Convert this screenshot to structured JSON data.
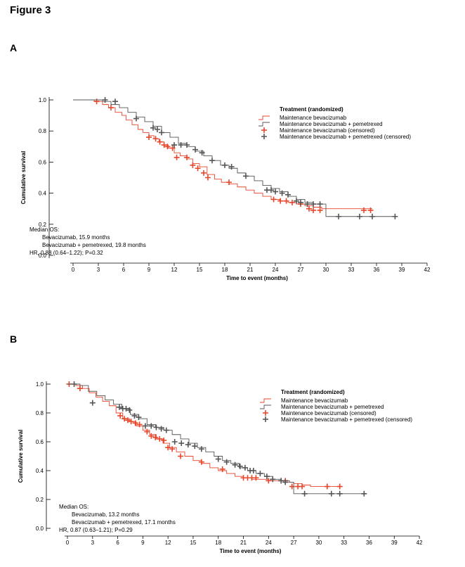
{
  "figure_title": "Figure 3",
  "colors": {
    "bev": "#e8452a",
    "pem": "#555555",
    "axis": "#000000"
  },
  "chart_data": [
    {
      "panel": "A",
      "type": "line",
      "xlabel": "Time to event (months)",
      "ylabel": "Cumulative survival",
      "xticks": [
        0,
        3,
        6,
        9,
        12,
        15,
        18,
        21,
        24,
        27,
        30,
        33,
        36,
        39,
        42
      ],
      "yticks": [
        0.0,
        0.2,
        0.4,
        0.6,
        0.8,
        1.0
      ],
      "ytick_labels": [
        "0.0",
        "0.2",
        "0.4",
        "0.6",
        "0.8",
        "1.0"
      ],
      "xlim": [
        0,
        42
      ],
      "ylim": [
        0,
        1
      ],
      "legend": {
        "title": "Treatment (randomized)",
        "placement": "top-right",
        "entries": [
          "Maintenance bevacizumab",
          "Maintenance bevacizumab + pemetrexed",
          "Maintenance bevacizumab (censored)",
          "Maintenance bevacizumab + pemetrexed (censored)"
        ]
      },
      "annotation": {
        "heading": "Median OS:",
        "line1": "Bevacizumab, 15.9 months",
        "line2": "Bevacizumab + pemetrexed, 19.8 months",
        "line3": "HR, 0.88 (0.64–1.22); P=0.32"
      },
      "series": [
        {
          "key": "bev",
          "x": [
            0,
            2.5,
            3.5,
            4.2,
            5,
            5.8,
            6.3,
            7,
            7.7,
            8.3,
            9,
            9.6,
            10.2,
            10.8,
            11.3,
            12,
            12.7,
            13.5,
            14.2,
            15,
            15.9,
            16.8,
            17.6,
            18.5,
            19.5,
            20.5,
            21.5,
            22.5,
            23.5,
            24.5,
            25.5,
            26.5,
            27.5,
            28.5,
            29.5,
            35.5
          ],
          "y": [
            1.0,
            0.99,
            0.97,
            0.95,
            0.92,
            0.9,
            0.87,
            0.84,
            0.81,
            0.79,
            0.77,
            0.75,
            0.73,
            0.71,
            0.69,
            0.66,
            0.64,
            0.62,
            0.59,
            0.57,
            0.52,
            0.49,
            0.47,
            0.46,
            0.44,
            0.42,
            0.4,
            0.38,
            0.36,
            0.35,
            0.34,
            0.33,
            0.32,
            0.31,
            0.3,
            0.3
          ],
          "censored": [
            [
              2.8,
              0.99
            ],
            [
              4.5,
              0.95
            ],
            [
              9.0,
              0.76
            ],
            [
              9.8,
              0.75
            ],
            [
              10.3,
              0.73
            ],
            [
              10.8,
              0.71
            ],
            [
              11.2,
              0.7
            ],
            [
              11.8,
              0.69
            ],
            [
              12.3,
              0.63
            ],
            [
              13.5,
              0.63
            ],
            [
              14.2,
              0.58
            ],
            [
              14.8,
              0.56
            ],
            [
              15.5,
              0.53
            ],
            [
              16.0,
              0.5
            ],
            [
              18.5,
              0.47
            ],
            [
              23.8,
              0.36
            ],
            [
              24.6,
              0.35
            ],
            [
              25.3,
              0.35
            ],
            [
              26.0,
              0.34
            ],
            [
              27.0,
              0.33
            ],
            [
              28.0,
              0.3
            ],
            [
              28.5,
              0.29
            ],
            [
              29.3,
              0.29
            ],
            [
              34.5,
              0.29
            ],
            [
              35.3,
              0.29
            ]
          ]
        },
        {
          "key": "pem",
          "x": [
            0,
            3.5,
            4.5,
            5.5,
            6.5,
            7.5,
            8.5,
            9.5,
            10.5,
            11.5,
            12.5,
            13.5,
            14.5,
            15.5,
            16.5,
            17.5,
            18.5,
            19.5,
            20.5,
            21.5,
            22.5,
            23.5,
            24.5,
            25.5,
            26.5,
            27.5,
            28.5,
            29.5,
            30.0,
            38.0
          ],
          "y": [
            1.0,
            0.99,
            0.97,
            0.95,
            0.92,
            0.89,
            0.86,
            0.83,
            0.79,
            0.76,
            0.72,
            0.7,
            0.67,
            0.64,
            0.61,
            0.58,
            0.56,
            0.53,
            0.51,
            0.48,
            0.45,
            0.43,
            0.41,
            0.38,
            0.36,
            0.34,
            0.33,
            0.33,
            0.25,
            0.25
          ],
          "censored": [
            [
              3.8,
              1.0
            ],
            [
              5.0,
              0.99
            ],
            [
              7.5,
              0.88
            ],
            [
              9.5,
              0.82
            ],
            [
              10.0,
              0.81
            ],
            [
              10.5,
              0.79
            ],
            [
              12.0,
              0.71
            ],
            [
              12.8,
              0.71
            ],
            [
              13.5,
              0.71
            ],
            [
              14.5,
              0.68
            ],
            [
              15.3,
              0.66
            ],
            [
              16.5,
              0.61
            ],
            [
              18.0,
              0.58
            ],
            [
              18.8,
              0.57
            ],
            [
              20.5,
              0.51
            ],
            [
              23.0,
              0.42
            ],
            [
              23.5,
              0.42
            ],
            [
              24.0,
              0.41
            ],
            [
              24.8,
              0.4
            ],
            [
              25.5,
              0.39
            ],
            [
              26.5,
              0.35
            ],
            [
              27.0,
              0.34
            ],
            [
              27.8,
              0.33
            ],
            [
              28.5,
              0.33
            ],
            [
              29.3,
              0.33
            ],
            [
              31.5,
              0.25
            ],
            [
              34.0,
              0.25
            ],
            [
              35.5,
              0.25
            ],
            [
              38.2,
              0.25
            ]
          ]
        }
      ]
    },
    {
      "panel": "B",
      "type": "line",
      "xlabel": "Time to event (months)",
      "ylabel": "Cumulative survival",
      "xticks": [
        0,
        3,
        6,
        9,
        12,
        15,
        18,
        21,
        24,
        27,
        30,
        33,
        36,
        39,
        42
      ],
      "yticks": [
        0.0,
        0.2,
        0.4,
        0.6,
        0.8,
        1.0
      ],
      "ytick_labels": [
        "0.0",
        "0.2",
        "0.4",
        "0.6",
        "0.8",
        "1.0"
      ],
      "xlim": [
        0,
        42
      ],
      "ylim": [
        0,
        1
      ],
      "legend": {
        "title": "Treatment (randomized)",
        "placement": "top-right",
        "entries": [
          "Maintenance bevacizumab",
          "Maintenance bevacizumab + pemetrexed",
          "Maintenance bevacizumab (censored)",
          "Maintenance bevacizumab + pemetrexed (censored)"
        ]
      },
      "annotation": {
        "heading": "Median OS:",
        "line1": "Bevacizumab, 13.2 months",
        "line2": "Bevacizumab + pemetrexed, 17.1 months",
        "line3": "HR, 0.87 (0.63–1.21); P=0.29"
      },
      "series": [
        {
          "key": "bev",
          "x": [
            0,
            1,
            1.8,
            2.6,
            3.4,
            4.2,
            5,
            5.8,
            6.6,
            7.4,
            8.2,
            9,
            9.8,
            10.6,
            11.4,
            12.2,
            13,
            14,
            15,
            16,
            17,
            18,
            19,
            20,
            21,
            22,
            23,
            24,
            25,
            26,
            27,
            28,
            29,
            32.5
          ],
          "y": [
            1.0,
            0.99,
            0.97,
            0.94,
            0.91,
            0.88,
            0.85,
            0.8,
            0.76,
            0.74,
            0.71,
            0.68,
            0.65,
            0.62,
            0.59,
            0.56,
            0.53,
            0.5,
            0.47,
            0.45,
            0.42,
            0.4,
            0.38,
            0.36,
            0.35,
            0.34,
            0.34,
            0.33,
            0.33,
            0.32,
            0.31,
            0.3,
            0.29,
            0.29
          ],
          "censored": [
            [
              0.2,
              1.0
            ],
            [
              1.5,
              0.97
            ],
            [
              6.3,
              0.78
            ],
            [
              6.8,
              0.76
            ],
            [
              7.2,
              0.75
            ],
            [
              7.6,
              0.74
            ],
            [
              8.1,
              0.73
            ],
            [
              8.6,
              0.72
            ],
            [
              9.5,
              0.67
            ],
            [
              10.0,
              0.64
            ],
            [
              10.5,
              0.63
            ],
            [
              11.0,
              0.62
            ],
            [
              11.5,
              0.61
            ],
            [
              12.0,
              0.56
            ],
            [
              12.5,
              0.55
            ],
            [
              13.5,
              0.5
            ],
            [
              16.0,
              0.46
            ],
            [
              18.5,
              0.41
            ],
            [
              21.0,
              0.35
            ],
            [
              21.5,
              0.35
            ],
            [
              22.0,
              0.35
            ],
            [
              22.5,
              0.35
            ],
            [
              24.0,
              0.33
            ],
            [
              25.5,
              0.33
            ],
            [
              26.0,
              0.33
            ],
            [
              26.8,
              0.29
            ],
            [
              27.5,
              0.29
            ],
            [
              28.0,
              0.29
            ],
            [
              31.0,
              0.29
            ],
            [
              32.5,
              0.29
            ]
          ]
        },
        {
          "key": "pem",
          "x": [
            0,
            1.5,
            2.5,
            3.5,
            4.5,
            5.5,
            6.5,
            7.5,
            8.5,
            9.5,
            10.5,
            11.5,
            12.5,
            13.5,
            14.5,
            15.5,
            16.5,
            17.5,
            18.5,
            19.5,
            20.5,
            21.5,
            22.5,
            23.5,
            24.5,
            25.5,
            26.5,
            27,
            35.5
          ],
          "y": [
            1.0,
            0.99,
            0.95,
            0.92,
            0.89,
            0.86,
            0.83,
            0.79,
            0.76,
            0.72,
            0.7,
            0.68,
            0.65,
            0.62,
            0.59,
            0.56,
            0.53,
            0.5,
            0.47,
            0.45,
            0.42,
            0.4,
            0.38,
            0.36,
            0.34,
            0.33,
            0.32,
            0.24,
            0.24
          ],
          "censored": [
            [
              0.8,
              1.0
            ],
            [
              3.0,
              0.87
            ],
            [
              6.2,
              0.84
            ],
            [
              6.6,
              0.83
            ],
            [
              7.0,
              0.83
            ],
            [
              7.4,
              0.82
            ],
            [
              8.0,
              0.78
            ],
            [
              8.5,
              0.77
            ],
            [
              9.3,
              0.71
            ],
            [
              10.0,
              0.71
            ],
            [
              10.6,
              0.7
            ],
            [
              11.2,
              0.69
            ],
            [
              11.8,
              0.68
            ],
            [
              12.8,
              0.6
            ],
            [
              13.6,
              0.59
            ],
            [
              14.4,
              0.58
            ],
            [
              15.2,
              0.57
            ],
            [
              16.0,
              0.55
            ],
            [
              18.0,
              0.48
            ],
            [
              19.0,
              0.46
            ],
            [
              20.0,
              0.44
            ],
            [
              20.6,
              0.43
            ],
            [
              21.2,
              0.42
            ],
            [
              21.8,
              0.4
            ],
            [
              22.2,
              0.4
            ],
            [
              23.0,
              0.38
            ],
            [
              23.8,
              0.36
            ],
            [
              24.5,
              0.34
            ],
            [
              25.5,
              0.33
            ],
            [
              26.0,
              0.32
            ],
            [
              28.3,
              0.24
            ],
            [
              31.5,
              0.24
            ],
            [
              32.5,
              0.24
            ],
            [
              35.4,
              0.24
            ]
          ]
        }
      ]
    }
  ]
}
